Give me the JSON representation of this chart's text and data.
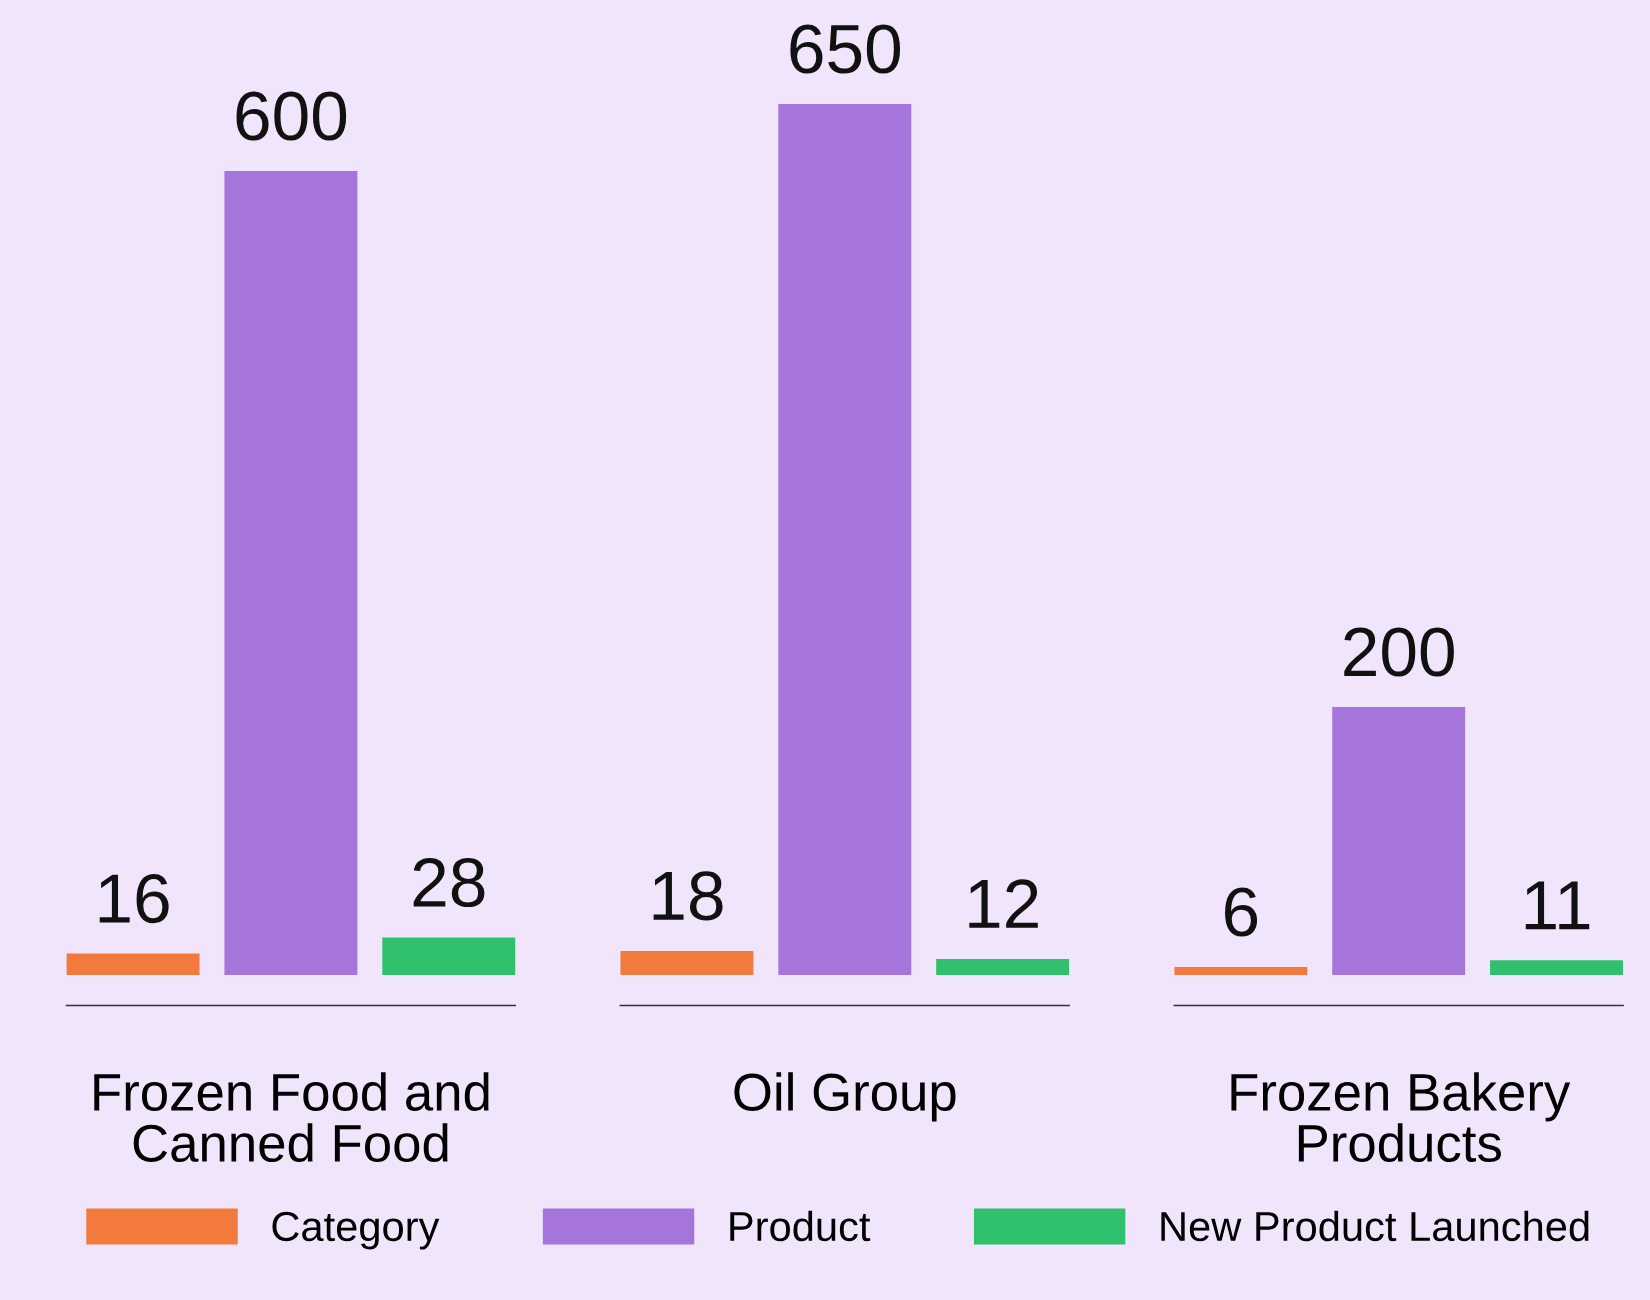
{
  "chart_data": {
    "type": "bar",
    "categories": [
      "Frozen Food and\nCanned Food",
      "Oil Group",
      "Frozen Bakery\nProducts"
    ],
    "series": [
      {
        "name": "Category",
        "color": "#f27a3c",
        "values": [
          16,
          18,
          6
        ]
      },
      {
        "name": "Product",
        "color": "#a675dc",
        "values": [
          600,
          650,
          200
        ]
      },
      {
        "name": "New Product Launched",
        "color": "#30c06e",
        "values": [
          28,
          12,
          11
        ]
      }
    ],
    "data_labels": true,
    "legend": "bottom",
    "grid": false
  }
}
